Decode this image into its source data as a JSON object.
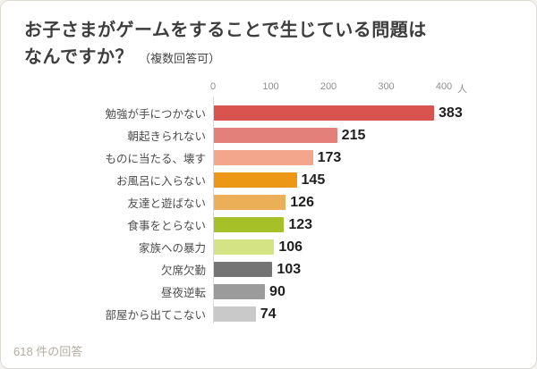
{
  "header": {
    "title_line1": "お子さまがゲームをすることで生じている問題は",
    "title_line2": "なんですか？",
    "title_note": "（複数回答可）"
  },
  "footer": {
    "text": "618 件の回答"
  },
  "chart_data": {
    "type": "bar",
    "orientation": "horizontal",
    "title": "お子さまがゲームをすることで生じている問題はなんですか？（複数回答可）",
    "categories": [
      "勉強が手につかない",
      "朝起きられない",
      "ものに当たる、壊す",
      "お風呂に入らない",
      "友達と遊ばない",
      "食事をとらない",
      "家族への暴力",
      "欠席欠勤",
      "昼夜逆転",
      "部屋から出てこない"
    ],
    "values": [
      383,
      215,
      173,
      145,
      126,
      123,
      106,
      103,
      90,
      74
    ],
    "bar_colors": [
      "#d9534f",
      "#e4807a",
      "#f3a68b",
      "#ec9715",
      "#eaaf57",
      "#a6c127",
      "#d4e383",
      "#747474",
      "#9b9b9b",
      "#c9c9c9"
    ],
    "x_ticks": [
      0,
      100,
      200,
      300,
      400
    ],
    "x_unit": "人",
    "xlim": [
      0,
      400
    ],
    "grid": false,
    "value_labels": true,
    "legend": false,
    "source_note": "618 件の回答"
  }
}
